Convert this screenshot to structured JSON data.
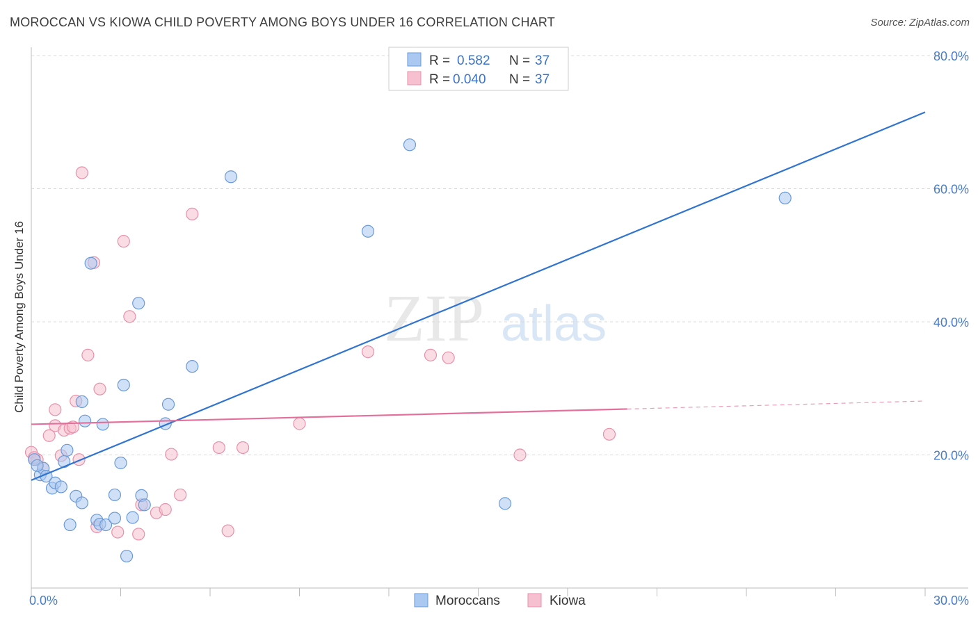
{
  "title": "MOROCCAN VS KIOWA CHILD POVERTY AMONG BOYS UNDER 16 CORRELATION CHART",
  "source": "Source: ZipAtlas.com",
  "watermark": {
    "zip": "ZIP",
    "atlas": "atlas"
  },
  "colors": {
    "moroccan_fill": "#aac8f0",
    "moroccan_stroke": "#6a9ad8",
    "moroccan_line": "#2f74d0",
    "kiowa_fill": "#f6c0d0",
    "kiowa_stroke": "#e890aa",
    "kiowa_line": "#e2709a",
    "tick_text": "#4a7cc8",
    "grid": "#d8d8d8"
  },
  "legend": {
    "r_label": "R =",
    "n_label": "N =",
    "rows": [
      {
        "r": "0.582",
        "n": "37"
      },
      {
        "r": "0.040",
        "n": "37"
      }
    ]
  },
  "bottom_legend": [
    "Moroccans",
    "Kiowa"
  ],
  "chart_data": {
    "type": "scatter",
    "title": "MOROCCAN VS KIOWA CHILD POVERTY AMONG BOYS UNDER 16 CORRELATION CHART",
    "xlabel": "",
    "ylabel": "Child Poverty Among Boys Under 16",
    "xlim": [
      0,
      30
    ],
    "ylim": [
      0,
      80
    ],
    "x_tick_labels": [
      "0.0%",
      "30.0%"
    ],
    "y_tick_labels": [
      "20.0%",
      "40.0%",
      "60.0%",
      "80.0%"
    ],
    "y_ticks": [
      20,
      40,
      60,
      80
    ],
    "grid": true,
    "legend_placement": "top-center",
    "series": [
      {
        "name": "Moroccans",
        "points": [
          [
            0.1,
            19.3
          ],
          [
            0.3,
            17.0
          ],
          [
            0.4,
            18.0
          ],
          [
            0.5,
            16.8
          ],
          [
            0.7,
            15.0
          ],
          [
            0.8,
            15.8
          ],
          [
            1.0,
            15.2
          ],
          [
            1.1,
            19.0
          ],
          [
            1.2,
            20.7
          ],
          [
            1.5,
            13.8
          ],
          [
            1.7,
            12.8
          ],
          [
            1.7,
            28.0
          ],
          [
            1.8,
            25.1
          ],
          [
            1.3,
            9.5
          ],
          [
            2.0,
            48.8
          ],
          [
            2.2,
            10.2
          ],
          [
            2.3,
            9.6
          ],
          [
            2.4,
            24.6
          ],
          [
            2.5,
            9.5
          ],
          [
            2.8,
            14.0
          ],
          [
            2.8,
            10.5
          ],
          [
            3.0,
            18.8
          ],
          [
            3.1,
            30.5
          ],
          [
            3.2,
            4.8
          ],
          [
            3.4,
            10.6
          ],
          [
            3.6,
            42.8
          ],
          [
            3.7,
            13.9
          ],
          [
            3.8,
            12.5
          ],
          [
            4.5,
            24.7
          ],
          [
            4.6,
            27.6
          ],
          [
            5.4,
            33.3
          ],
          [
            6.7,
            61.8
          ],
          [
            11.3,
            53.6
          ],
          [
            12.7,
            66.6
          ],
          [
            15.9,
            12.7
          ],
          [
            25.3,
            58.6
          ],
          [
            0.2,
            18.4
          ]
        ],
        "trend": {
          "x": [
            0,
            30
          ],
          "y": [
            16.2,
            71.5
          ]
        }
      },
      {
        "name": "Kiowa",
        "points": [
          [
            0.0,
            20.4
          ],
          [
            0.2,
            19.3
          ],
          [
            0.4,
            18.0
          ],
          [
            0.6,
            22.9
          ],
          [
            0.8,
            26.8
          ],
          [
            0.8,
            24.4
          ],
          [
            1.0,
            19.9
          ],
          [
            1.1,
            23.7
          ],
          [
            1.3,
            24.0
          ],
          [
            1.4,
            24.2
          ],
          [
            1.5,
            28.1
          ],
          [
            1.6,
            19.3
          ],
          [
            1.7,
            62.4
          ],
          [
            1.9,
            35.0
          ],
          [
            2.1,
            48.9
          ],
          [
            2.2,
            9.2
          ],
          [
            2.3,
            29.9
          ],
          [
            2.9,
            8.4
          ],
          [
            3.1,
            52.1
          ],
          [
            3.3,
            40.8
          ],
          [
            3.6,
            8.1
          ],
          [
            3.7,
            12.5
          ],
          [
            4.2,
            11.3
          ],
          [
            4.5,
            11.8
          ],
          [
            4.7,
            20.1
          ],
          [
            5.0,
            14.0
          ],
          [
            5.4,
            56.2
          ],
          [
            6.3,
            21.1
          ],
          [
            6.6,
            8.6
          ],
          [
            7.1,
            21.1
          ],
          [
            9.0,
            24.7
          ],
          [
            11.3,
            35.5
          ],
          [
            13.4,
            35.0
          ],
          [
            14.0,
            34.6
          ],
          [
            16.4,
            20.0
          ],
          [
            19.4,
            23.1
          ],
          [
            0.1,
            19.6
          ]
        ],
        "trend": {
          "x": [
            0,
            20
          ],
          "y": [
            24.6,
            26.9
          ]
        },
        "trend_extension": {
          "x": [
            20,
            30
          ],
          "y": [
            26.9,
            28.1
          ]
        }
      }
    ]
  }
}
